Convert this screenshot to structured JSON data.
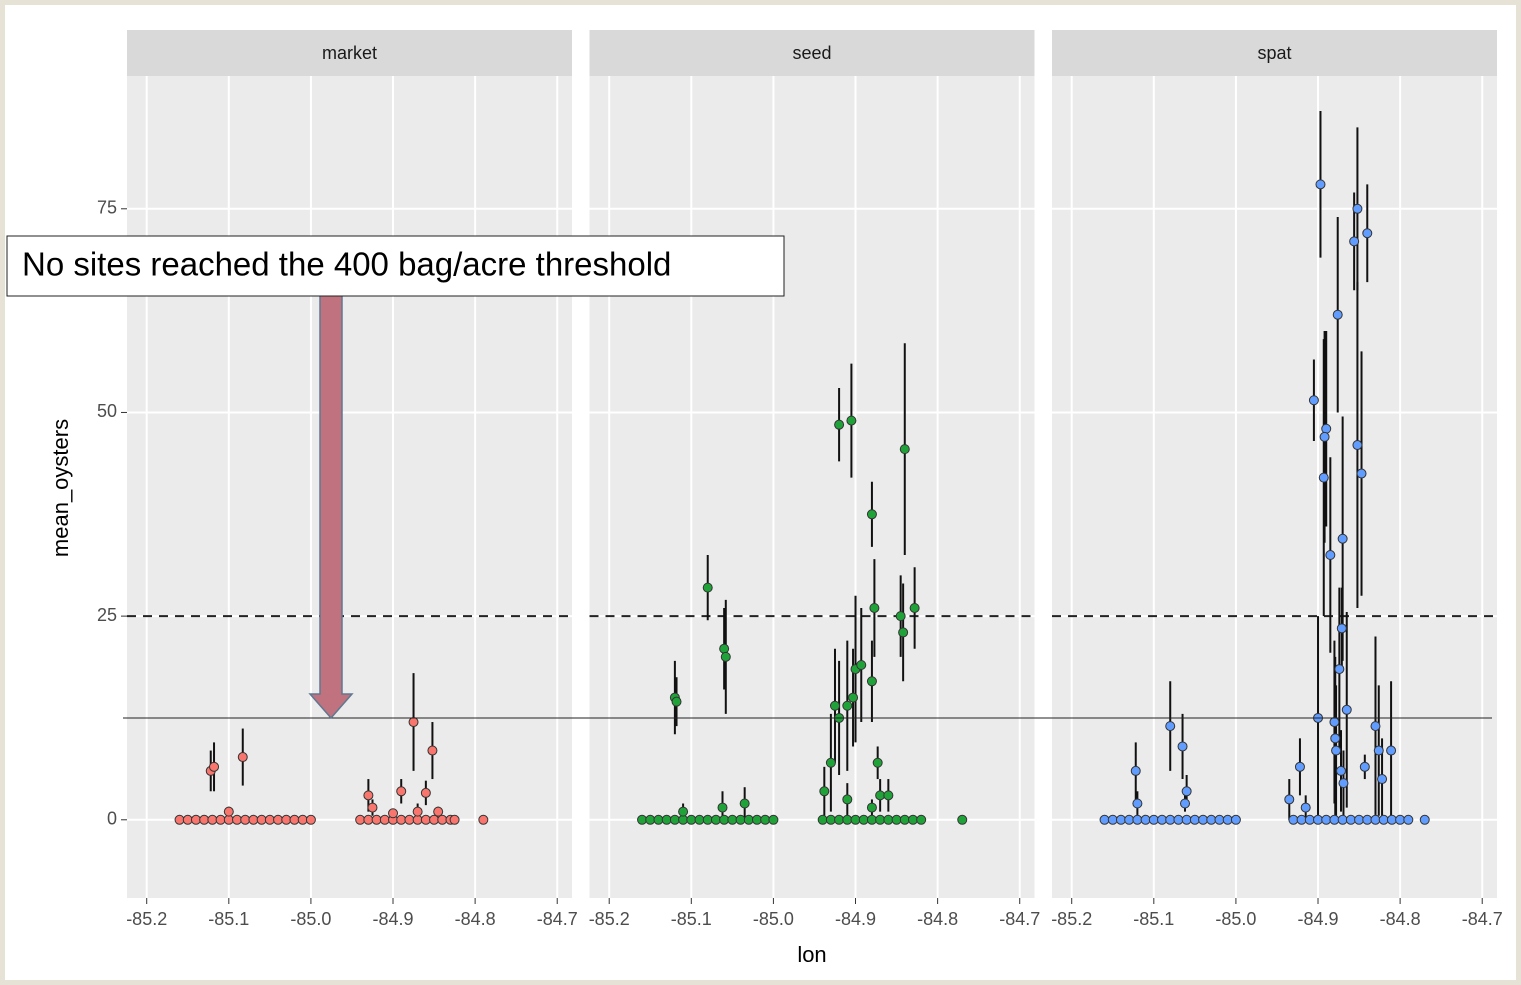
{
  "annotation": "No sites reached the 400 bag/acre threshold",
  "x_label": "lon",
  "y_label": "mean_oysters",
  "reference_line": {
    "value": 12.5,
    "style": "solid"
  },
  "chart_data": [
    {
      "type": "scatter",
      "title": "market",
      "color": "#f8766d",
      "xlim": [
        -85.224,
        -84.682
      ],
      "ylim": [
        -9.6,
        91.3
      ],
      "xticks": [
        -85.2,
        -85.1,
        {
          "value": -85,
          "label": "-85.0"
        },
        -84.9,
        -84.8,
        -84.7
      ],
      "yticks": [
        0,
        25,
        50,
        75
      ],
      "grid": true,
      "hlines": [
        {
          "value": 25,
          "style": "dashed"
        }
      ],
      "x": [
        -85.16,
        -85.15,
        -85.14,
        -85.13,
        -85.12,
        -85.11,
        -85.1,
        -85.09,
        -85.08,
        -85.07,
        -85.06,
        -85.05,
        -85.04,
        -85.03,
        -85.02,
        -85.01,
        -85.0,
        -85.122,
        -85.118,
        -85.083,
        -85.1,
        -84.94,
        -84.93,
        -84.92,
        -84.91,
        -84.9,
        -84.89,
        -84.88,
        -84.87,
        -84.86,
        -84.85,
        -84.84,
        -84.83,
        -84.825,
        -84.79,
        -84.93,
        -84.925,
        -84.89,
        -84.875,
        -84.86,
        -84.852,
        -84.87,
        -84.845,
        -84.9
      ],
      "values": [
        0,
        0,
        0,
        0,
        0,
        0,
        0,
        0,
        0,
        0,
        0,
        0,
        0,
        0,
        0,
        0,
        0,
        6,
        6.5,
        7.7,
        1,
        0,
        0,
        0,
        0,
        0,
        0,
        0,
        0,
        0,
        0,
        0,
        0,
        0,
        0,
        3,
        1.5,
        3.5,
        12,
        3.3,
        8.5,
        1,
        1,
        0.8
      ],
      "errors": [
        0,
        0,
        0,
        0,
        0,
        0,
        0,
        0,
        0,
        0,
        0,
        0,
        0,
        0,
        0,
        0,
        0,
        2.5,
        3,
        3.5,
        0.6,
        0,
        0,
        0,
        0,
        0,
        0,
        0,
        0,
        0,
        0,
        0,
        0,
        0,
        0,
        2,
        1,
        1.5,
        6,
        1.5,
        3.5,
        1,
        0.6,
        0.5
      ]
    },
    {
      "type": "scatter",
      "title": "seed",
      "color": "#1fa338",
      "xlim": [
        -85.224,
        -84.682
      ],
      "ylim": [
        -9.6,
        91.3
      ],
      "xticks": [
        -85.2,
        -85.1,
        {
          "value": -85,
          "label": "-85.0"
        },
        -84.9,
        -84.8,
        -84.7
      ],
      "yticks": [
        0,
        25,
        50,
        75
      ],
      "grid": true,
      "hlines": [
        {
          "value": 25,
          "style": "dashed"
        }
      ],
      "x": [
        -85.16,
        -85.15,
        -85.14,
        -85.13,
        -85.12,
        -85.11,
        -85.1,
        -85.09,
        -85.08,
        -85.07,
        -85.06,
        -85.05,
        -85.04,
        -85.03,
        -85.02,
        -85.01,
        -85.0,
        -85.12,
        -85.118,
        -85.08,
        -85.06,
        -85.058,
        -85.062,
        -85.035,
        -85.11,
        -84.94,
        -84.93,
        -84.92,
        -84.91,
        -84.9,
        -84.89,
        -84.88,
        -84.87,
        -84.86,
        -84.85,
        -84.84,
        -84.83,
        -84.82,
        -84.77,
        -84.92,
        -84.905,
        -84.88,
        -84.84,
        -84.828,
        -84.845,
        -84.842,
        -84.877,
        -84.9,
        -84.893,
        -84.91,
        -84.925,
        -84.92,
        -84.93,
        -84.938,
        -84.91,
        -84.873,
        -84.87,
        -84.88,
        -84.903,
        -84.86,
        -84.88
      ],
      "values": [
        0,
        0,
        0,
        0,
        0,
        0,
        0,
        0,
        0,
        0,
        0,
        0,
        0,
        0,
        0,
        0,
        0,
        15,
        14.5,
        28.5,
        21,
        20,
        1.5,
        2,
        1,
        0,
        0,
        0,
        0,
        0,
        0,
        0,
        0,
        0,
        0,
        0,
        0,
        0,
        0,
        48.5,
        49,
        37.5,
        45.5,
        26,
        25,
        23,
        26,
        18.5,
        19,
        14,
        14,
        12.5,
        7,
        3.5,
        2.5,
        7,
        3,
        17,
        15,
        3,
        1.5
      ],
      "errors": [
        0,
        0,
        0,
        0,
        0,
        0,
        0,
        0,
        0,
        0,
        0,
        0,
        0,
        0,
        0,
        0,
        0,
        4.5,
        3,
        4,
        5,
        7,
        2,
        2,
        1,
        0,
        0,
        0,
        0,
        0,
        0,
        0,
        0,
        0,
        0,
        0,
        0,
        0,
        0,
        4.5,
        7,
        4,
        13,
        5,
        5,
        6,
        6,
        9,
        7,
        8,
        7,
        7,
        6,
        3,
        2,
        2,
        2,
        5,
        6,
        2,
        1
      ]
    },
    {
      "type": "scatter",
      "title": "spat",
      "color": "#619cff",
      "xlim": [
        -85.224,
        -84.682
      ],
      "ylim": [
        -9.6,
        91.3
      ],
      "xticks": [
        -85.2,
        -85.1,
        {
          "value": -85,
          "label": "-85.0"
        },
        -84.9,
        -84.8,
        -84.7
      ],
      "yticks": [
        0,
        25,
        50,
        75
      ],
      "grid": true,
      "hlines": [
        {
          "value": 25,
          "style": "dashed"
        }
      ],
      "x": [
        -85.16,
        -85.15,
        -85.14,
        -85.13,
        -85.12,
        -85.11,
        -85.1,
        -85.09,
        -85.08,
        -85.07,
        -85.06,
        -85.05,
        -85.04,
        -85.03,
        -85.02,
        -85.01,
        -85.0,
        -85.122,
        -85.12,
        -85.08,
        -85.065,
        -85.06,
        -85.062,
        -84.93,
        -84.92,
        -84.91,
        -84.9,
        -84.89,
        -84.88,
        -84.87,
        -84.86,
        -84.85,
        -84.84,
        -84.83,
        -84.82,
        -84.81,
        -84.8,
        -84.79,
        -84.77,
        -84.935,
        -84.922,
        -84.915,
        -84.905,
        -84.9,
        -84.897,
        -84.89,
        -84.892,
        -84.893,
        -84.885,
        -84.876,
        -84.87,
        -84.871,
        -84.874,
        -84.88,
        -84.879,
        -84.878,
        -84.872,
        -84.869,
        -84.865,
        -84.856,
        -84.852,
        -84.852,
        -84.847,
        -84.84,
        -84.843,
        -84.83,
        -84.826,
        -84.822,
        -84.811
      ],
      "values": [
        0,
        0,
        0,
        0,
        0,
        0,
        0,
        0,
        0,
        0,
        0,
        0,
        0,
        0,
        0,
        0,
        0,
        6,
        2,
        11.5,
        9,
        3.5,
        2,
        0,
        0,
        0,
        0,
        0,
        0,
        0,
        0,
        0,
        0,
        0,
        0,
        0,
        0,
        0,
        0,
        2.5,
        6.5,
        1.5,
        51.5,
        12.5,
        78,
        48,
        47,
        42,
        32.5,
        62,
        34.5,
        23.5,
        18.5,
        12,
        10,
        8.5,
        6,
        4.5,
        13.5,
        71,
        75,
        46,
        42.5,
        72,
        6.5,
        11.5,
        8.5,
        5,
        8.5
      ],
      "errors": [
        0,
        0,
        0,
        0,
        0,
        0,
        0,
        0,
        0,
        0,
        0,
        0,
        0,
        0,
        0,
        0,
        0,
        3.5,
        1.5,
        5.5,
        4,
        2,
        1,
        0,
        0,
        0,
        0,
        0,
        0,
        0,
        0,
        0,
        0,
        0,
        0,
        0,
        0,
        0,
        0,
        2.5,
        3.5,
        1.5,
        5,
        12.5,
        9,
        12,
        13,
        17,
        12,
        12,
        15,
        5,
        10,
        10,
        10,
        8,
        5,
        4,
        12,
        6,
        10,
        20,
        15,
        6,
        1.5,
        11,
        8,
        5,
        8.5
      ]
    }
  ]
}
